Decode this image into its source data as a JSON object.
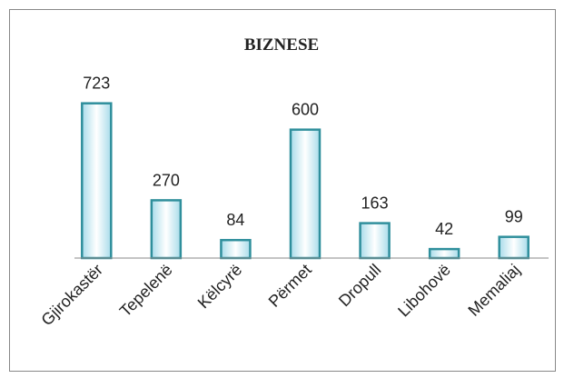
{
  "chart_data": {
    "type": "bar",
    "title": "BIZNESE",
    "categories": [
      "Gjirokastër",
      "Tepelenë",
      "Këlcyrë",
      "Përmet",
      "Dropull",
      "Libohovë",
      "Memaliaj"
    ],
    "values": [
      723,
      270,
      84,
      600,
      163,
      42,
      99
    ],
    "color": "#c9eef7",
    "ylim": [
      0,
      900
    ]
  }
}
